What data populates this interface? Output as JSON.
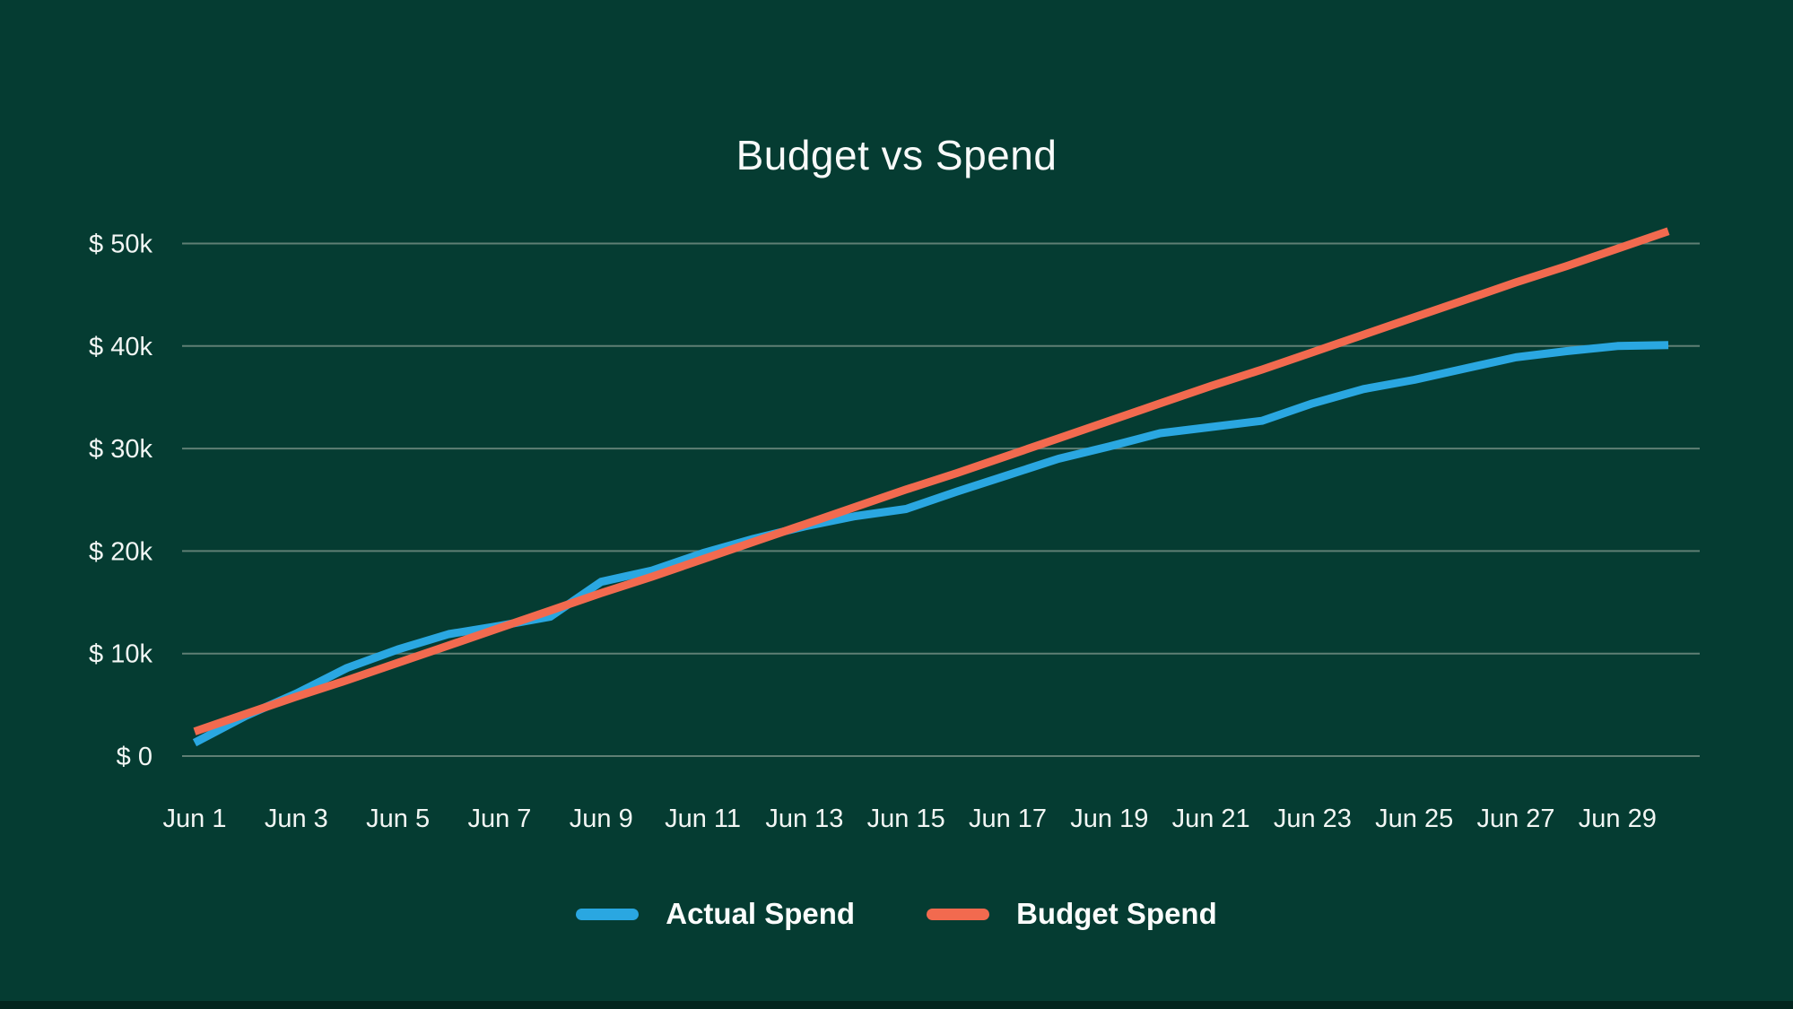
{
  "page": {
    "background_color": "#053c32",
    "bottom_strip_color": "#02251e"
  },
  "chart": {
    "title": "Budget vs Spend",
    "colors": {
      "actual": "#2aa7e1",
      "budget": "#f26a4f",
      "grid": "#7d968b",
      "text": "#f2f6f4"
    },
    "legend": [
      {
        "label": "Actual Spend",
        "series": "actual"
      },
      {
        "label": "Budget Spend",
        "series": "budget"
      }
    ]
  },
  "chart_data": {
    "type": "line",
    "title": "Budget vs Spend",
    "x": [
      "Jun 1",
      "Jun 2",
      "Jun 3",
      "Jun 4",
      "Jun 5",
      "Jun 6",
      "Jun 7",
      "Jun 8",
      "Jun 9",
      "Jun 10",
      "Jun 11",
      "Jun 12",
      "Jun 13",
      "Jun 14",
      "Jun 15",
      "Jun 16",
      "Jun 17",
      "Jun 18",
      "Jun 19",
      "Jun 20",
      "Jun 21",
      "Jun 22",
      "Jun 23",
      "Jun 24",
      "Jun 25",
      "Jun 26",
      "Jun 27",
      "Jun 28",
      "Jun 29",
      "Jun 30"
    ],
    "x_tick_labels": [
      "Jun 1",
      "Jun 3",
      "Jun 5",
      "Jun 7",
      "Jun 9",
      "Jun 11",
      "Jun 13",
      "Jun 15",
      "Jun 17",
      "Jun 19",
      "Jun 21",
      "Jun 23",
      "Jun 25",
      "Jun 27",
      "Jun 29"
    ],
    "x_tick_every": 2,
    "y_ticks_k": [
      0,
      10,
      20,
      30,
      40,
      50
    ],
    "y_tick_labels": [
      "$ 0",
      "$ 10k",
      "$ 20k",
      "$ 30k",
      "$ 40k",
      "$ 50k"
    ],
    "ylim_k": [
      0,
      55
    ],
    "units": "USD thousands",
    "grid": "horizontal-only",
    "legend_position": "bottom",
    "series": [
      {
        "name": "Actual Spend",
        "color": "#2aa7e1",
        "values_k": [
          1.3,
          3.9,
          6.1,
          8.6,
          10.4,
          11.9,
          12.7,
          13.6,
          17.0,
          18.1,
          19.8,
          21.2,
          22.4,
          23.4,
          24.1,
          25.8,
          27.4,
          29.0,
          30.2,
          31.5,
          32.1,
          32.7,
          34.4,
          35.8,
          36.7,
          37.8,
          38.9,
          39.5,
          40.0,
          40.1
        ]
      },
      {
        "name": "Budget Spend",
        "color": "#f26a4f",
        "values_k": [
          2.4,
          4.1,
          5.8,
          7.4,
          9.1,
          10.8,
          12.5,
          14.2,
          15.9,
          17.5,
          19.2,
          20.9,
          22.6,
          24.3,
          26.0,
          27.6,
          29.3,
          31.0,
          32.7,
          34.4,
          36.1,
          37.7,
          39.4,
          41.1,
          42.8,
          44.5,
          46.2,
          47.8,
          49.5,
          51.2
        ]
      }
    ]
  }
}
